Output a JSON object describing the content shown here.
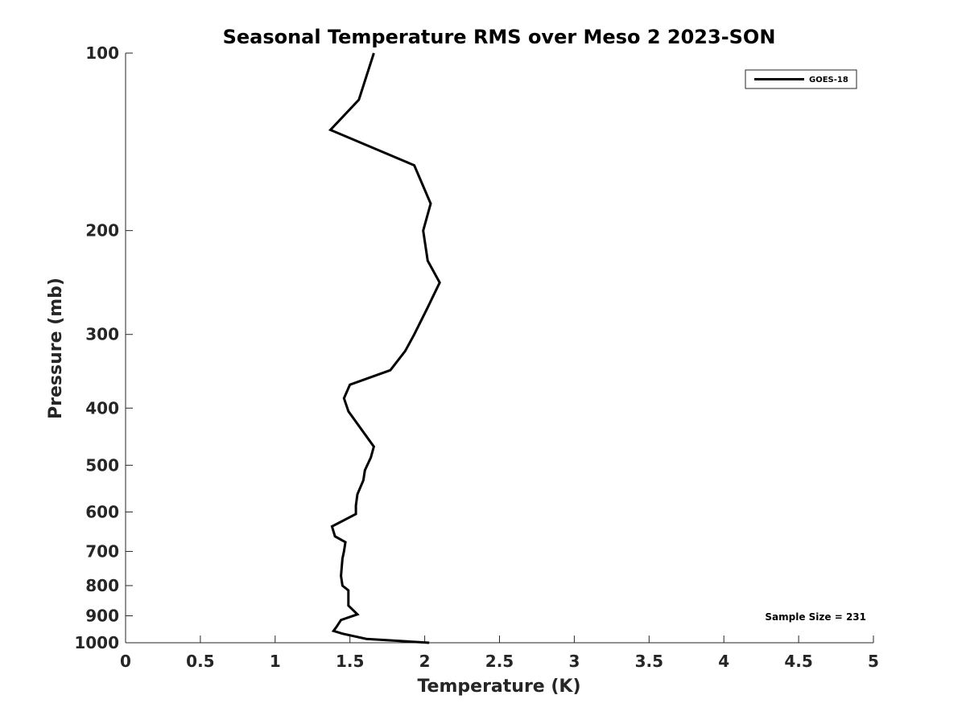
{
  "chart_data": {
    "type": "line",
    "title": "Seasonal Temperature RMS over Meso 2  2023-SON",
    "xlabel": "Temperature (K)",
    "ylabel": "Pressure (mb)",
    "xlim": [
      0,
      5
    ],
    "ylim": [
      100,
      1000
    ],
    "yscale": "log",
    "y_reversed": true,
    "grid": false,
    "legend_position": "top-right",
    "x_ticks": [
      0,
      0.5,
      1,
      1.5,
      2,
      2.5,
      3,
      3.5,
      4,
      4.5,
      5
    ],
    "x_tick_labels": [
      "0",
      "0.5",
      "1",
      "1.5",
      "2",
      "2.5",
      "3",
      "3.5",
      "4",
      "4.5",
      "5"
    ],
    "y_ticks": [
      100,
      200,
      300,
      400,
      500,
      600,
      700,
      800,
      900,
      1000
    ],
    "y_tick_labels": [
      "100",
      "200",
      "300",
      "400",
      "500",
      "600",
      "700",
      "800",
      "900",
      "1000"
    ],
    "series": [
      {
        "name": "GOES-18",
        "color": "#000000",
        "x": [
          1.66,
          1.56,
          1.37,
          1.93,
          2.04,
          1.99,
          2.02,
          2.1,
          2.02,
          1.93,
          1.87,
          1.77,
          1.5,
          1.46,
          1.49,
          1.66,
          1.64,
          1.6,
          1.59,
          1.55,
          1.54,
          1.54,
          1.38,
          1.4,
          1.47,
          1.46,
          1.45,
          1.44,
          1.45,
          1.49,
          1.49,
          1.49,
          1.55,
          1.44,
          1.41,
          1.39,
          1.45,
          1.61,
          2.03
        ],
        "y": [
          100,
          120,
          135,
          155,
          180,
          200,
          225,
          245,
          270,
          300,
          320,
          345,
          365,
          385,
          405,
          465,
          485,
          510,
          530,
          560,
          585,
          605,
          635,
          660,
          675,
          700,
          720,
          770,
          800,
          815,
          840,
          865,
          895,
          915,
          940,
          955,
          965,
          985,
          1000
        ]
      }
    ],
    "annotations": [
      "Sample Size = 231"
    ]
  }
}
